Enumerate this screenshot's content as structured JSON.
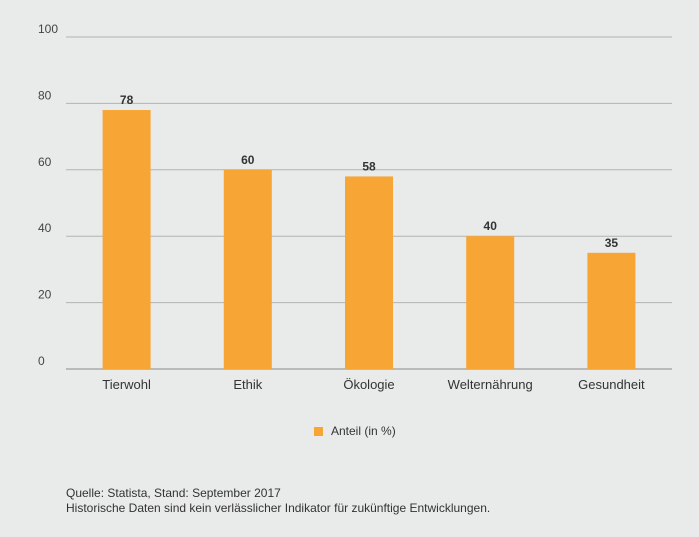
{
  "chart_data": {
    "type": "bar",
    "categories": [
      "Tierwohl",
      "Ethik",
      "Ökologie",
      "Welternährung",
      "Gesundheit"
    ],
    "values": [
      78,
      60,
      58,
      40,
      35
    ],
    "series": [
      {
        "name": "Anteil (in %)",
        "values": [
          78,
          60,
          58,
          40,
          35
        ]
      }
    ],
    "ylim": [
      0,
      100
    ],
    "yticks": [
      0,
      20,
      40,
      60,
      80,
      100
    ],
    "grid": true,
    "title": "",
    "xlabel": "",
    "ylabel": "",
    "legend_position": "bottom-center",
    "bar_color": "#f7a535"
  },
  "legend": {
    "label": "Anteil (in %)"
  },
  "footer": {
    "source": "Quelle: Statista, Stand: September 2017",
    "note": "Historische Daten sind kein verlässlicher Indikator für zukünftige Entwicklungen."
  }
}
